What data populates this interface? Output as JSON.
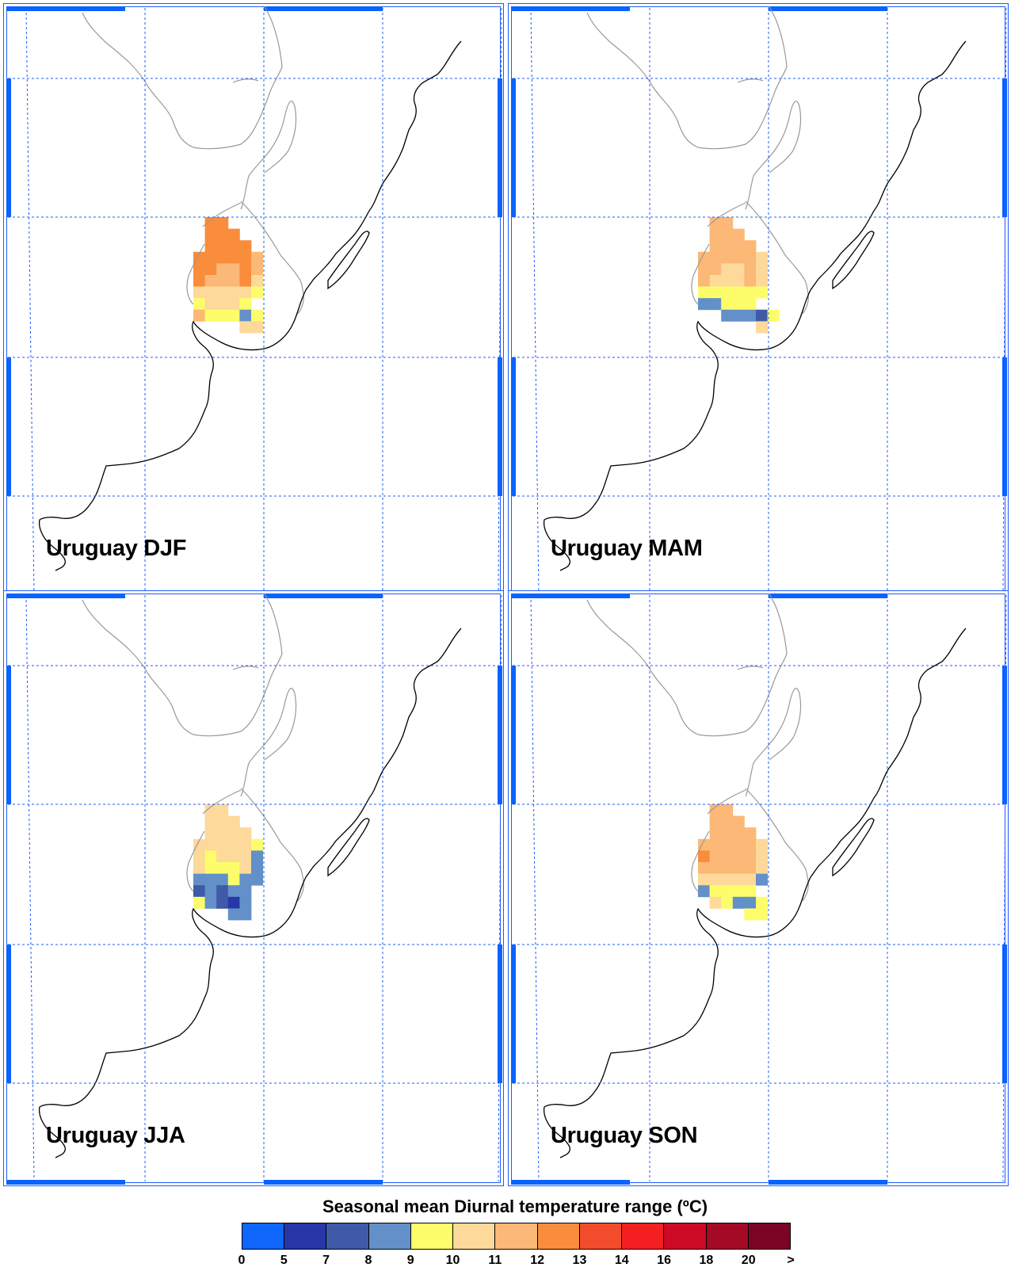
{
  "panels": [
    {
      "label": "Uruguay DJF",
      "cells": [
        [
          1,
          0,
          "12"
        ],
        [
          2,
          0,
          "12"
        ],
        [
          1,
          1,
          "12"
        ],
        [
          2,
          1,
          "12"
        ],
        [
          3,
          1,
          "12"
        ],
        [
          1,
          2,
          "12"
        ],
        [
          2,
          2,
          "12"
        ],
        [
          3,
          2,
          "12"
        ],
        [
          4,
          2,
          "12"
        ],
        [
          0,
          3,
          "12"
        ],
        [
          1,
          3,
          "12"
        ],
        [
          2,
          3,
          "12"
        ],
        [
          3,
          3,
          "12"
        ],
        [
          4,
          3,
          "12"
        ],
        [
          5,
          3,
          "11"
        ],
        [
          0,
          4,
          "12"
        ],
        [
          1,
          4,
          "12"
        ],
        [
          2,
          4,
          "11"
        ],
        [
          3,
          4,
          "11"
        ],
        [
          4,
          4,
          "12"
        ],
        [
          5,
          4,
          "11"
        ],
        [
          0,
          5,
          "12"
        ],
        [
          1,
          5,
          "11"
        ],
        [
          2,
          5,
          "11"
        ],
        [
          3,
          5,
          "11"
        ],
        [
          4,
          5,
          "12"
        ],
        [
          5,
          5,
          "10"
        ],
        [
          0,
          6,
          "10"
        ],
        [
          1,
          6,
          "10"
        ],
        [
          2,
          6,
          "10"
        ],
        [
          3,
          6,
          "10"
        ],
        [
          4,
          6,
          "10"
        ],
        [
          5,
          6,
          "9"
        ],
        [
          0,
          7,
          "9"
        ],
        [
          1,
          7,
          "10"
        ],
        [
          2,
          7,
          "10"
        ],
        [
          3,
          7,
          "10"
        ],
        [
          4,
          7,
          "9"
        ],
        [
          0,
          8,
          "11"
        ],
        [
          1,
          8,
          "9"
        ],
        [
          2,
          8,
          "9"
        ],
        [
          3,
          8,
          "9"
        ],
        [
          4,
          8,
          "8"
        ],
        [
          5,
          8,
          "9"
        ],
        [
          4,
          9,
          "10"
        ],
        [
          5,
          9,
          "10"
        ]
      ]
    },
    {
      "label": "Uruguay MAM",
      "cells": [
        [
          1,
          0,
          "11"
        ],
        [
          2,
          0,
          "11"
        ],
        [
          1,
          1,
          "11"
        ],
        [
          2,
          1,
          "11"
        ],
        [
          3,
          1,
          "11"
        ],
        [
          1,
          2,
          "11"
        ],
        [
          2,
          2,
          "11"
        ],
        [
          3,
          2,
          "11"
        ],
        [
          4,
          2,
          "11"
        ],
        [
          0,
          3,
          "11"
        ],
        [
          1,
          3,
          "11"
        ],
        [
          2,
          3,
          "11"
        ],
        [
          3,
          3,
          "11"
        ],
        [
          4,
          3,
          "11"
        ],
        [
          5,
          3,
          "10"
        ],
        [
          0,
          4,
          "11"
        ],
        [
          1,
          4,
          "11"
        ],
        [
          2,
          4,
          "10"
        ],
        [
          3,
          4,
          "10"
        ],
        [
          4,
          4,
          "11"
        ],
        [
          5,
          4,
          "10"
        ],
        [
          0,
          5,
          "11"
        ],
        [
          1,
          5,
          "10"
        ],
        [
          2,
          5,
          "10"
        ],
        [
          3,
          5,
          "10"
        ],
        [
          4,
          5,
          "11"
        ],
        [
          5,
          5,
          "10"
        ],
        [
          0,
          6,
          "9"
        ],
        [
          1,
          6,
          "9"
        ],
        [
          2,
          6,
          "9"
        ],
        [
          3,
          6,
          "9"
        ],
        [
          4,
          6,
          "9"
        ],
        [
          5,
          6,
          "9"
        ],
        [
          0,
          7,
          "8"
        ],
        [
          1,
          7,
          "8"
        ],
        [
          2,
          7,
          "9"
        ],
        [
          3,
          7,
          "9"
        ],
        [
          4,
          7,
          "9"
        ],
        [
          2,
          8,
          "8"
        ],
        [
          3,
          8,
          "8"
        ],
        [
          4,
          8,
          "8"
        ],
        [
          5,
          8,
          "7"
        ],
        [
          6,
          8,
          "9"
        ],
        [
          5,
          9,
          "10"
        ]
      ]
    },
    {
      "label": "Uruguay JJA",
      "cells": [
        [
          1,
          0,
          "10"
        ],
        [
          2,
          0,
          "10"
        ],
        [
          1,
          1,
          "10"
        ],
        [
          2,
          1,
          "10"
        ],
        [
          3,
          1,
          "10"
        ],
        [
          1,
          2,
          "10"
        ],
        [
          2,
          2,
          "10"
        ],
        [
          3,
          2,
          "10"
        ],
        [
          4,
          2,
          "10"
        ],
        [
          0,
          3,
          "10"
        ],
        [
          1,
          3,
          "10"
        ],
        [
          2,
          3,
          "10"
        ],
        [
          3,
          3,
          "10"
        ],
        [
          4,
          3,
          "10"
        ],
        [
          5,
          3,
          "9"
        ],
        [
          0,
          4,
          "10"
        ],
        [
          1,
          4,
          "9"
        ],
        [
          2,
          4,
          "10"
        ],
        [
          3,
          4,
          "10"
        ],
        [
          4,
          4,
          "10"
        ],
        [
          5,
          4,
          "8"
        ],
        [
          0,
          5,
          "10"
        ],
        [
          1,
          5,
          "9"
        ],
        [
          2,
          5,
          "9"
        ],
        [
          3,
          5,
          "9"
        ],
        [
          4,
          5,
          "10"
        ],
        [
          5,
          5,
          "8"
        ],
        [
          0,
          6,
          "8"
        ],
        [
          1,
          6,
          "8"
        ],
        [
          2,
          6,
          "8"
        ],
        [
          3,
          6,
          "9"
        ],
        [
          4,
          6,
          "8"
        ],
        [
          5,
          6,
          "8"
        ],
        [
          0,
          7,
          "7"
        ],
        [
          1,
          7,
          "8"
        ],
        [
          2,
          7,
          "7"
        ],
        [
          3,
          7,
          "8"
        ],
        [
          4,
          7,
          "8"
        ],
        [
          0,
          8,
          "9"
        ],
        [
          1,
          8,
          "8"
        ],
        [
          2,
          8,
          "7"
        ],
        [
          3,
          8,
          "5"
        ],
        [
          4,
          8,
          "8"
        ],
        [
          3,
          9,
          "8"
        ],
        [
          4,
          9,
          "8"
        ]
      ]
    },
    {
      "label": "Uruguay SON",
      "cells": [
        [
          1,
          0,
          "11"
        ],
        [
          2,
          0,
          "11"
        ],
        [
          1,
          1,
          "11"
        ],
        [
          2,
          1,
          "11"
        ],
        [
          3,
          1,
          "11"
        ],
        [
          1,
          2,
          "11"
        ],
        [
          2,
          2,
          "11"
        ],
        [
          3,
          2,
          "11"
        ],
        [
          4,
          2,
          "11"
        ],
        [
          0,
          3,
          "11"
        ],
        [
          1,
          3,
          "11"
        ],
        [
          2,
          3,
          "11"
        ],
        [
          3,
          3,
          "11"
        ],
        [
          4,
          3,
          "11"
        ],
        [
          5,
          3,
          "10"
        ],
        [
          0,
          4,
          "12"
        ],
        [
          1,
          4,
          "11"
        ],
        [
          2,
          4,
          "11"
        ],
        [
          3,
          4,
          "11"
        ],
        [
          4,
          4,
          "11"
        ],
        [
          5,
          4,
          "10"
        ],
        [
          0,
          5,
          "11"
        ],
        [
          1,
          5,
          "11"
        ],
        [
          2,
          5,
          "11"
        ],
        [
          3,
          5,
          "11"
        ],
        [
          4,
          5,
          "11"
        ],
        [
          5,
          5,
          "10"
        ],
        [
          0,
          6,
          "10"
        ],
        [
          1,
          6,
          "10"
        ],
        [
          2,
          6,
          "10"
        ],
        [
          3,
          6,
          "10"
        ],
        [
          4,
          6,
          "10"
        ],
        [
          5,
          6,
          "8"
        ],
        [
          0,
          7,
          "8"
        ],
        [
          1,
          7,
          "9"
        ],
        [
          2,
          7,
          "9"
        ],
        [
          3,
          7,
          "9"
        ],
        [
          4,
          7,
          "9"
        ],
        [
          1,
          8,
          "10"
        ],
        [
          2,
          8,
          "9"
        ],
        [
          3,
          8,
          "8"
        ],
        [
          4,
          8,
          "8"
        ],
        [
          5,
          8,
          "9"
        ],
        [
          4,
          9,
          "9"
        ],
        [
          5,
          9,
          "9"
        ]
      ]
    }
  ],
  "legend": {
    "title": "Seasonal mean Diurnal temperature range (ºC)",
    "colors": [
      "#0f66fa",
      "#2737a8",
      "#3e5aa8",
      "#6390c8",
      "#fdfd6b",
      "#fdd99a",
      "#fcb876",
      "#f98d3b",
      "#f24c2c",
      "#f41f20",
      "#cc0a25",
      "#a40a25",
      "#7c0526"
    ],
    "tick_labels": [
      "0",
      "5",
      "7",
      "8",
      "9",
      "10",
      "11",
      "12",
      "13",
      "14",
      "16",
      "18",
      "20",
      ">"
    ]
  },
  "colors": {
    "grid": "#1e5cff",
    "frame_blue": "#0a62ff",
    "coast": "#000000",
    "river": "#999999"
  }
}
